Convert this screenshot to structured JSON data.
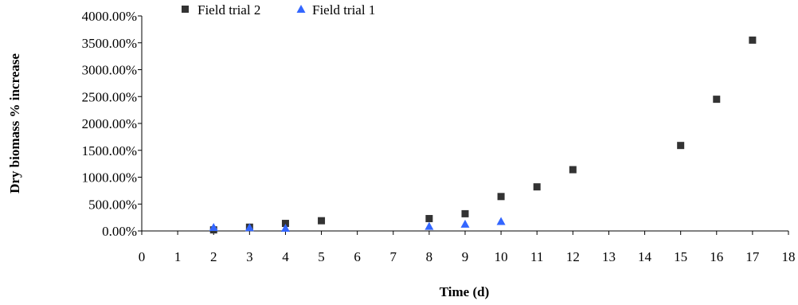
{
  "chart_data": {
    "type": "scatter",
    "xlabel": "Time (d)",
    "ylabel": "Dry biomass % increase",
    "xlim": [
      0,
      18
    ],
    "ylim": [
      0,
      4000
    ],
    "x_ticks": [
      0,
      1,
      2,
      3,
      4,
      5,
      6,
      7,
      8,
      9,
      10,
      11,
      12,
      13,
      14,
      15,
      16,
      17,
      18
    ],
    "y_ticks": [
      0,
      500,
      1000,
      1500,
      2000,
      2500,
      3000,
      3500,
      4000
    ],
    "y_tick_labels": [
      "0.00%",
      "500.00%",
      "1000.00%",
      "1500.00%",
      "2000.00%",
      "2500.00%",
      "3000.00%",
      "3500.00%",
      "4000.00%"
    ],
    "grid": false,
    "legend_position": "top",
    "series": [
      {
        "name": "Field trial 2",
        "marker": "square",
        "color": "#333333",
        "points": [
          [
            2,
            20
          ],
          [
            3,
            70
          ],
          [
            4,
            140
          ],
          [
            5,
            190
          ],
          [
            8,
            230
          ],
          [
            9,
            320
          ],
          [
            10,
            640
          ],
          [
            11,
            820
          ],
          [
            12,
            1140
          ],
          [
            15,
            1590
          ],
          [
            16,
            2450
          ],
          [
            17,
            3550
          ]
        ]
      },
      {
        "name": "Field trial 1",
        "marker": "triangle",
        "color": "#3366ff",
        "points": [
          [
            2,
            60
          ],
          [
            3,
            55
          ],
          [
            4,
            45
          ],
          [
            8,
            80
          ],
          [
            9,
            120
          ],
          [
            10,
            170
          ]
        ]
      }
    ]
  }
}
